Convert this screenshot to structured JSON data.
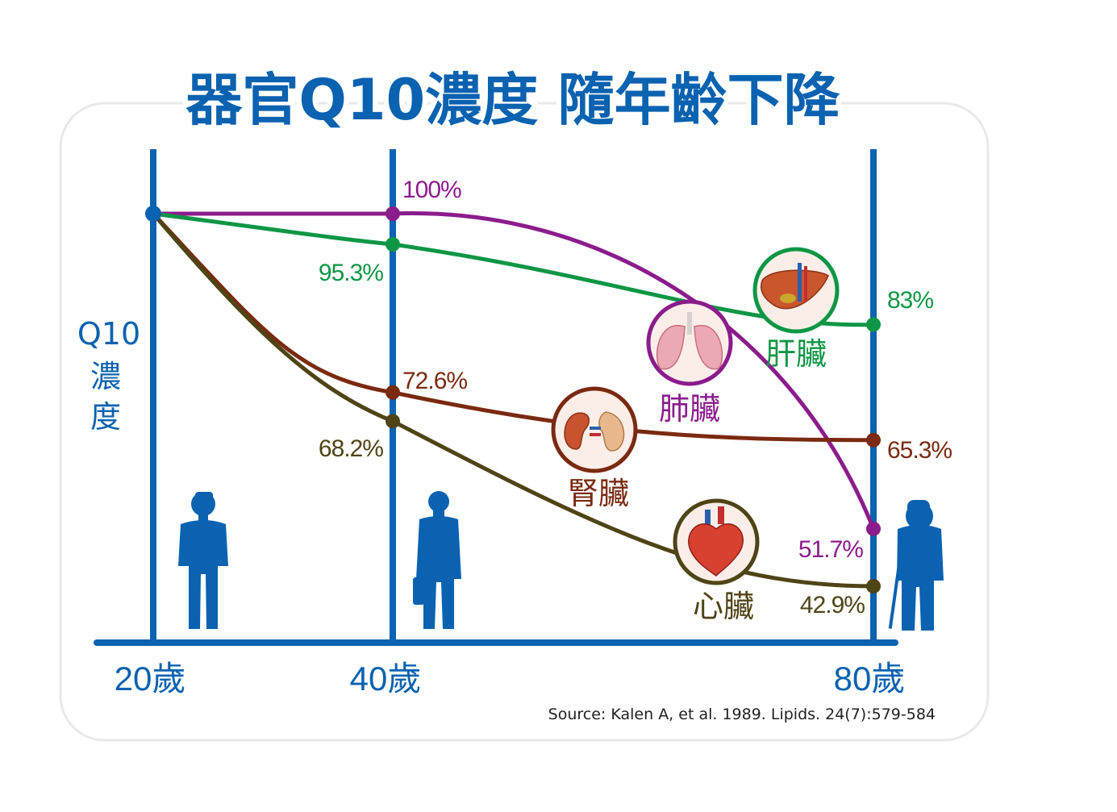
{
  "title": "器官Q10濃度 隨年齡下降",
  "ylabel": [
    "Q10",
    "濃",
    "度"
  ],
  "source": "Source: Kalen A, et al. 1989. Lipids. 24(7):579-584",
  "colors": {
    "axis": "#0a62b0",
    "lung": "#8b1c8c",
    "liver": "#0e9645",
    "kidney": "#7a2a10",
    "heart": "#4f4416"
  },
  "chart_data": {
    "type": "line",
    "x": [
      20,
      40,
      80
    ],
    "xticks": [
      "20歲",
      "40歲",
      "80歲"
    ],
    "ylim": [
      40,
      100
    ],
    "series": [
      {
        "name": "肺臟",
        "values": [
          100,
          100,
          51.7
        ],
        "labels": [
          "",
          "100%",
          "51.7%"
        ],
        "color": "#8b1c8c",
        "icon": "lungs-icon"
      },
      {
        "name": "肝臟",
        "values": [
          100,
          95.3,
          83
        ],
        "labels": [
          "",
          "95.3%",
          "83%"
        ],
        "color": "#0e9645",
        "icon": "liver-icon"
      },
      {
        "name": "腎臟",
        "values": [
          100,
          72.6,
          65.3
        ],
        "labels": [
          "",
          "72.6%",
          "65.3%"
        ],
        "color": "#7a2a10",
        "icon": "kidney-icon"
      },
      {
        "name": "心臟",
        "values": [
          100,
          68.2,
          42.9
        ],
        "labels": [
          "",
          "68.2%",
          "42.9%"
        ],
        "color": "#4f4416",
        "icon": "heart-icon"
      }
    ]
  },
  "figures": [
    "young-man-icon",
    "businessman-icon",
    "elderly-man-icon"
  ]
}
